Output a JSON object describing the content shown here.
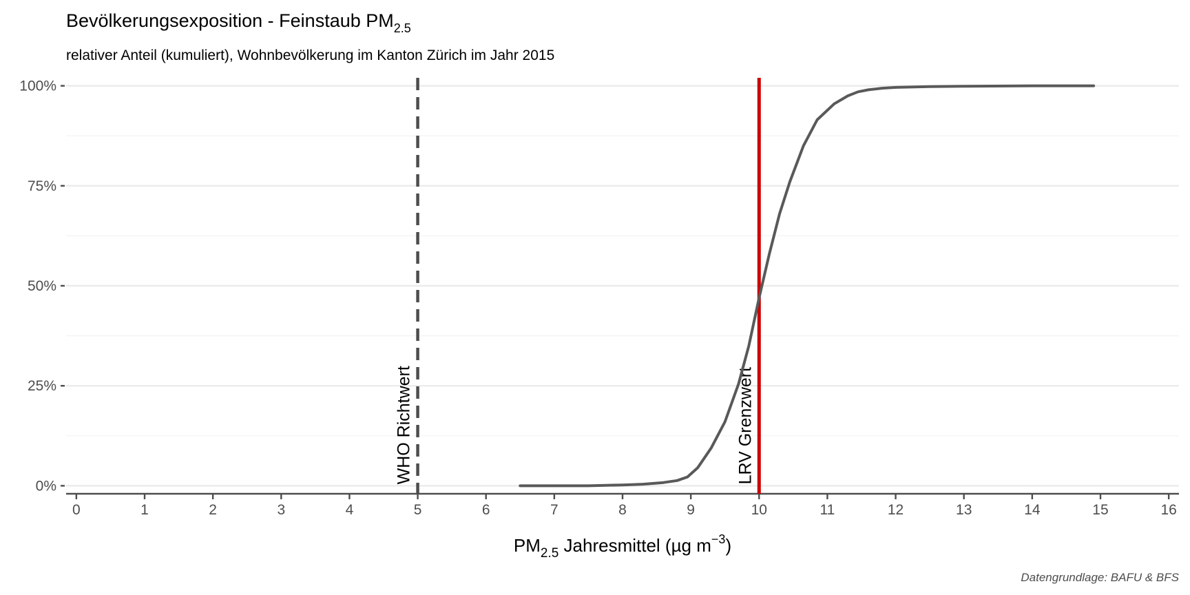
{
  "chart_data": {
    "type": "line",
    "title": "Bevölkerungsexposition - Feinstaub PM",
    "title_sub": "2.5",
    "subtitle": "relativer Anteil (kumuliert), Wohnbevölkerung im Kanton Zürich im Jahr 2015",
    "xlabel": {
      "pre": "PM",
      "sub": "2.5",
      "mid": " Jahresmittel (µg m",
      "sup": "−3",
      "post": ")"
    },
    "ylabel": "",
    "caption": "Datengrundlage: BAFU & BFS",
    "xlim": [
      -0.15,
      16.15
    ],
    "ylim": [
      -0.02,
      1.02
    ],
    "x_ticks": [
      0,
      1,
      2,
      3,
      4,
      5,
      6,
      7,
      8,
      9,
      10,
      11,
      12,
      13,
      14,
      15,
      16
    ],
    "x_tick_labels": [
      "0",
      "1",
      "2",
      "3",
      "4",
      "5",
      "6",
      "7",
      "8",
      "9",
      "10",
      "11",
      "12",
      "13",
      "14",
      "15",
      "16"
    ],
    "y_ticks": [
      0,
      0.25,
      0.5,
      0.75,
      1.0
    ],
    "y_tick_labels": [
      "0%",
      "25%",
      "50%",
      "75%",
      "100%"
    ],
    "y_minor_ticks": [
      0.125,
      0.375,
      0.625,
      0.875
    ],
    "grid": true,
    "colors": {
      "line": "#595959",
      "who": "#4d4d4d",
      "lrv": "#cc0000",
      "grid": "#ebebeb",
      "axis": "#4d4d4d"
    },
    "series": [
      {
        "x": [
          6.5,
          7.0,
          7.5,
          8.0,
          8.3,
          8.6,
          8.8,
          8.95,
          9.1,
          9.3,
          9.5,
          9.7,
          9.85,
          10.0,
          10.15,
          10.3,
          10.45,
          10.65,
          10.85,
          11.1,
          11.3,
          11.45,
          11.6,
          11.8,
          12.0,
          12.5,
          13.0,
          14.0,
          14.9
        ],
        "y": [
          0.0,
          0.0,
          0.0,
          0.002,
          0.004,
          0.008,
          0.013,
          0.022,
          0.045,
          0.095,
          0.16,
          0.255,
          0.35,
          0.47,
          0.58,
          0.68,
          0.76,
          0.85,
          0.915,
          0.955,
          0.975,
          0.985,
          0.99,
          0.994,
          0.996,
          0.998,
          0.999,
          1.0,
          1.0
        ]
      }
    ],
    "reference_lines": [
      {
        "x": 5,
        "label": "WHO Richtwert",
        "style": "dashed"
      },
      {
        "x": 10,
        "label": "LRV Grenzwert",
        "style": "solid"
      }
    ]
  }
}
